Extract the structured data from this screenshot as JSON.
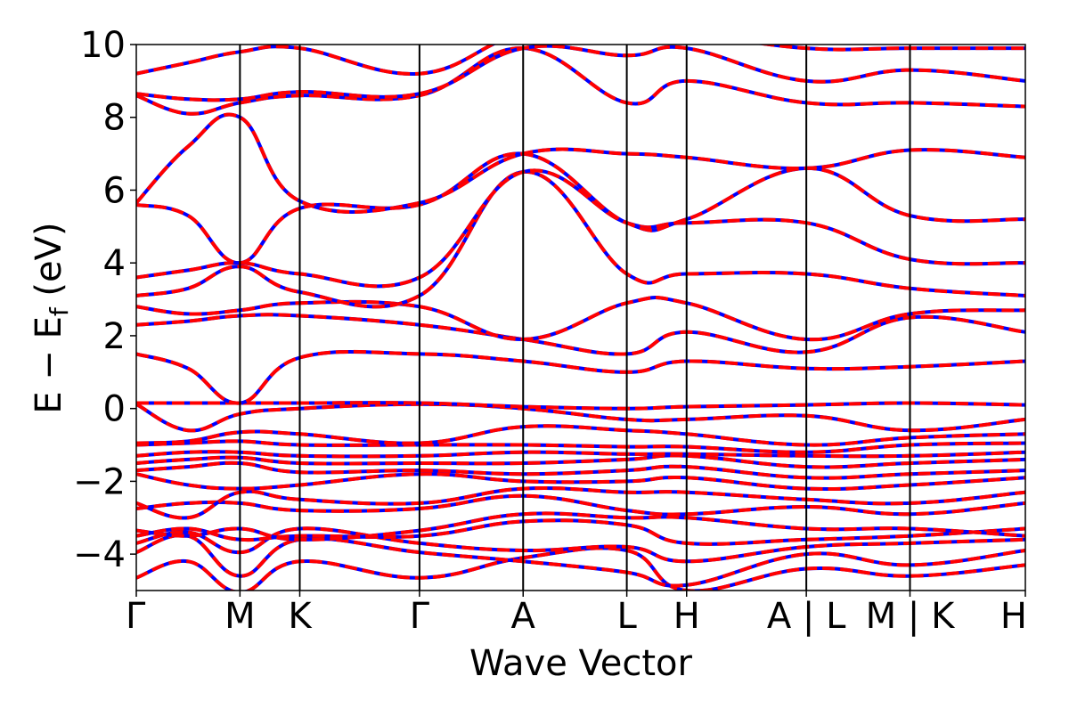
{
  "chart_data": {
    "type": "line",
    "title": "",
    "xlabel": "Wave Vector",
    "ylabel": "E − Ef (eV)",
    "ylabel_parts": {
      "main": "E − E",
      "sub": "f",
      "unit": " (eV)"
    },
    "ylim": [
      -5,
      10
    ],
    "y_ticks": [
      -4,
      -2,
      0,
      2,
      4,
      6,
      8,
      10
    ],
    "y_tick_labels": [
      "−4",
      "−2",
      "0",
      "2",
      "4",
      "6",
      "8",
      "10"
    ],
    "x_ticks": [
      0,
      1,
      1.577,
      2.732,
      3.732,
      4.732,
      5.309,
      6.464,
      7.464,
      8.577
    ],
    "x_tick_labels": [
      "Γ",
      "M",
      "K",
      "Γ",
      "A",
      "L",
      "H",
      "A | L",
      "M | K",
      "H"
    ],
    "segment_breaks": [
      7.464,
      8.577
    ],
    "grid": false,
    "legend": "none",
    "series_colors": {
      "reference": "#0000ff",
      "overlay": "#ff0000"
    },
    "series_styles": {
      "reference": "solid",
      "overlay": "dashed"
    },
    "bands": [
      [
        -4.65,
        -4.2,
        -5.05,
        -4.2,
        -4.65,
        -4.1,
        -3.9,
        -5.0,
        -4.4,
        -4.6,
        -4.3
      ],
      [
        -3.95,
        -3.5,
        -4.6,
        -3.6,
        -3.95,
        -4.2,
        -4.5,
        -4.85,
        -4.0,
        -4.3,
        -3.9
      ],
      [
        -3.7,
        -3.4,
        -3.95,
        -3.3,
        -3.7,
        -3.9,
        -3.8,
        -4.2,
        -3.8,
        -3.7,
        -3.6
      ],
      [
        -3.5,
        -3.3,
        -3.6,
        -3.5,
        -3.5,
        -3.1,
        -3.2,
        -3.7,
        -3.6,
        -3.5,
        -3.3
      ],
      [
        -3.35,
        -3.5,
        -3.3,
        -3.6,
        -3.35,
        -2.9,
        -3.0,
        -3.0,
        -3.3,
        -3.3,
        -3.5
      ],
      [
        -2.75,
        -2.6,
        -2.6,
        -2.8,
        -2.75,
        -2.4,
        -2.8,
        -2.9,
        -2.7,
        -2.9,
        -2.6
      ],
      [
        -2.6,
        -3.0,
        -2.3,
        -2.5,
        -2.6,
        -2.2,
        -2.3,
        -2.3,
        -2.5,
        -2.6,
        -2.3
      ],
      [
        -1.8,
        -2.1,
        -2.2,
        -2.1,
        -1.8,
        -2.0,
        -2.0,
        -1.9,
        -2.2,
        -2.1,
        -1.9
      ],
      [
        -1.7,
        -1.6,
        -1.5,
        -1.75,
        -1.7,
        -1.8,
        -1.7,
        -1.6,
        -1.9,
        -1.8,
        -1.7
      ],
      [
        -1.5,
        -1.4,
        -1.35,
        -1.5,
        -1.5,
        -1.5,
        -1.4,
        -1.3,
        -1.6,
        -1.5,
        -1.4
      ],
      [
        -1.3,
        -1.2,
        -1.2,
        -1.3,
        -1.3,
        -1.2,
        -1.25,
        -1.25,
        -1.3,
        -1.3,
        -1.2
      ],
      [
        -1.0,
        -0.95,
        -0.9,
        -1.0,
        -1.0,
        -1.0,
        -1.05,
        -1.05,
        -1.2,
        -1.0,
        -0.95
      ],
      [
        -0.95,
        -0.9,
        -0.65,
        -0.7,
        -0.95,
        -0.5,
        -0.6,
        -0.7,
        -1.0,
        -0.8,
        -0.7
      ],
      [
        0.12,
        -0.6,
        -0.15,
        0.0,
        0.12,
        0.0,
        -0.3,
        -0.3,
        -0.2,
        -0.6,
        -0.3
      ],
      [
        0.15,
        0.15,
        0.15,
        0.15,
        0.15,
        0.05,
        0.0,
        0.05,
        0.1,
        0.15,
        0.1
      ],
      [
        1.5,
        1.1,
        0.15,
        1.4,
        1.5,
        1.3,
        1.0,
        1.3,
        1.1,
        1.15,
        1.3
      ],
      [
        2.3,
        2.4,
        2.55,
        2.55,
        2.3,
        1.9,
        1.5,
        2.1,
        1.55,
        2.5,
        2.1
      ],
      [
        2.8,
        2.6,
        2.7,
        2.9,
        2.8,
        1.9,
        2.9,
        2.9,
        1.9,
        2.6,
        2.7
      ],
      [
        3.1,
        3.3,
        3.9,
        3.2,
        3.1,
        6.5,
        3.7,
        3.7,
        3.7,
        3.3,
        3.1
      ],
      [
        3.6,
        3.8,
        4.0,
        3.7,
        3.6,
        6.5,
        5.1,
        5.1,
        5.1,
        4.1,
        4.0
      ],
      [
        5.6,
        5.3,
        4.0,
        5.5,
        5.6,
        7.0,
        5.1,
        5.2,
        6.6,
        5.3,
        5.2
      ],
      [
        5.65,
        7.2,
        8.0,
        5.7,
        5.65,
        7.0,
        7.0,
        6.9,
        6.6,
        7.1,
        6.9
      ],
      [
        8.6,
        8.1,
        8.4,
        8.6,
        8.6,
        9.9,
        8.4,
        9.0,
        8.4,
        8.4,
        8.3
      ],
      [
        8.65,
        8.5,
        8.5,
        8.7,
        8.65,
        9.9,
        9.7,
        9.9,
        9.0,
        9.3,
        9.0
      ],
      [
        9.2,
        9.5,
        9.8,
        9.9,
        9.2,
        10.3,
        10.3,
        10.3,
        9.9,
        9.9,
        9.9
      ]
    ],
    "band_x": [
      0,
      0.5,
      1,
      1.577,
      2.732,
      3.732,
      4.732,
      5.309,
      6.464,
      7.464,
      8.577
    ]
  }
}
